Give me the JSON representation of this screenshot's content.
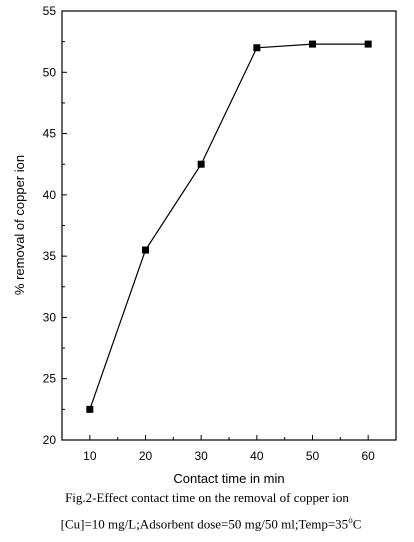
{
  "chart_data": {
    "type": "line",
    "x": [
      10,
      20,
      30,
      40,
      50,
      60
    ],
    "series": [
      {
        "values": [
          22.5,
          35.5,
          42.5,
          52.0,
          52.3,
          52.3
        ]
      }
    ],
    "xlabel": "Contact time in min",
    "ylabel": "% removal of copper ion",
    "xlim": [
      5,
      65
    ],
    "ylim": [
      20,
      55
    ],
    "xticks": [
      10,
      20,
      30,
      40,
      50,
      60
    ],
    "yticks": [
      20,
      25,
      30,
      35,
      40,
      45,
      50,
      55
    ],
    "grid": false,
    "marker": "filled-square",
    "line_color": "#000000"
  },
  "caption": {
    "line1": "Fig.2-Effect contact time on the removal of copper ion",
    "line2_prefix": "[Cu]=10 mg/L;Adsorbent dose=50 mg/50 ml;Temp=35",
    "line2_degree": "o",
    "line2_unit": "C"
  }
}
